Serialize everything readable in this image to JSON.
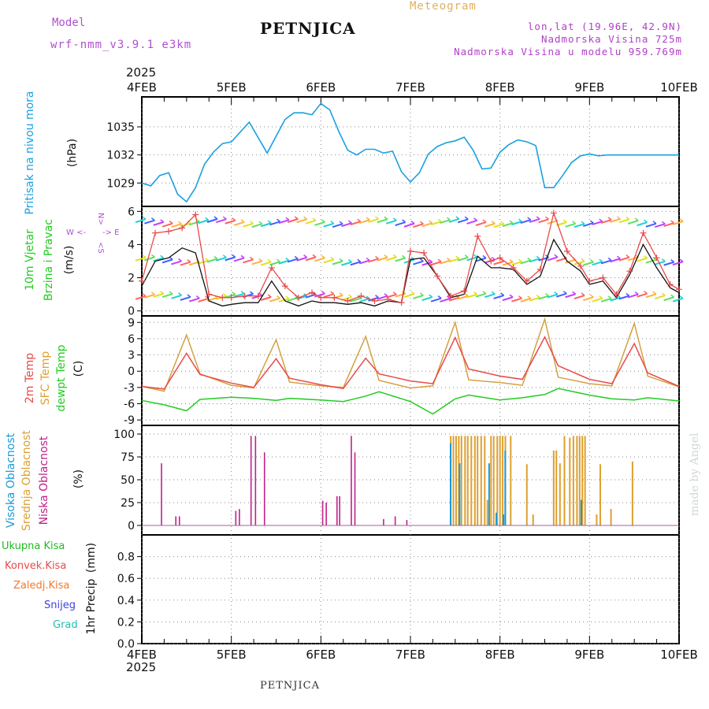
{
  "header": {
    "title": "PETNJICA",
    "subtitle": "Meteogram",
    "model_label": "Model",
    "model_name": "wrf-nmm_v3.9.1  e3km",
    "coords": "lon,lat (19.96E, 42.9N)",
    "elevation": "Nadmorska Visina 725m",
    "model_elevation": "Nadmorska Visina u modelu 959.769m",
    "footer": "PETNJICA",
    "year": "2025",
    "credit": "made by Angel"
  },
  "colors": {
    "pressure": "#1aa0e0",
    "wind": "#111111",
    "wind_gust": "#e84a4a",
    "temp2m": "#e84a4a",
    "sfc_temp": "#d4a040",
    "dewpoint": "#22cc22",
    "cloud_high": "#1a9ad6",
    "cloud_mid": "#dda030",
    "cloud_low": "#c0208a"
  },
  "chart_data": [
    {
      "type": "line",
      "id": "pressure",
      "ylabel_main": "Pritisak na nivou mora",
      "ylabel_unit": "(hPa)",
      "x_ticks": [
        "4FEB",
        "5FEB",
        "6FEB",
        "7FEB",
        "8FEB",
        "9FEB",
        "10FEB"
      ],
      "ylim": [
        1026.5,
        1038.2
      ],
      "yticks": [
        1029,
        1032,
        1035
      ],
      "x": [
        0,
        0.1,
        0.2,
        0.3,
        0.4,
        0.5,
        0.6,
        0.7,
        0.8,
        0.9,
        1.0,
        1.2,
        1.4,
        1.6,
        1.7,
        1.8,
        1.9,
        2.0,
        2.1,
        2.2,
        2.3,
        2.4,
        2.5,
        2.6,
        2.7,
        2.8,
        2.9,
        3.0,
        3.1,
        3.2,
        3.3,
        3.4,
        3.5,
        3.6,
        3.7,
        3.8,
        3.9,
        4.0,
        4.1,
        4.2,
        4.3,
        4.4,
        4.5,
        4.6,
        4.7,
        4.8,
        4.9,
        5.0,
        5.1,
        5.2,
        5.3,
        5.4,
        5.5,
        5.6,
        5.7,
        5.8,
        5.9,
        6.0
      ],
      "series": [
        {
          "name": "MSLP",
          "values": [
            1029,
            1028.7,
            1029.8,
            1030.1,
            1027.8,
            1027,
            1028.5,
            1031,
            1032.3,
            1033.2,
            1033.4,
            1035.5,
            1032.2,
            1035.8,
            1036.5,
            1036.5,
            1036.3,
            1037.5,
            1036.8,
            1034.5,
            1032.5,
            1032,
            1032.6,
            1032.6,
            1032.2,
            1032.4,
            1030.2,
            1029.1,
            1030.1,
            1032.1,
            1032.9,
            1033.3,
            1033.5,
            1033.9,
            1032.5,
            1030.5,
            1030.6,
            1032.3,
            1033.1,
            1033.6,
            1033.4,
            1033,
            1028.5,
            1028.5,
            1029.8,
            1031.2,
            1031.9,
            1032.1,
            1031.9,
            1032,
            1032.0,
            1032,
            1032,
            1032,
            1032,
            1032,
            1032,
            1032
          ]
        }
      ]
    },
    {
      "type": "line",
      "id": "wind",
      "ylabel_main": "10m Vjetar",
      "ylabel_sub": "Brzina i Pravac",
      "ylabel_unit": "(m/s)",
      "compass": {
        "n": "N",
        "s": "S",
        "w": "W",
        "e": "E"
      },
      "ylim": [
        -0.3,
        6.3
      ],
      "yticks": [
        0,
        2,
        4,
        6
      ],
      "x": [
        0,
        0.15,
        0.3,
        0.45,
        0.6,
        0.75,
        0.9,
        1.0,
        1.15,
        1.3,
        1.45,
        1.6,
        1.75,
        1.9,
        2.0,
        2.15,
        2.3,
        2.45,
        2.6,
        2.75,
        2.9,
        3.0,
        3.15,
        3.3,
        3.45,
        3.6,
        3.75,
        3.9,
        4.0,
        4.15,
        4.3,
        4.45,
        4.6,
        4.75,
        4.9,
        5.0,
        5.15,
        5.3,
        5.45,
        5.6,
        5.75,
        5.9,
        6.0
      ],
      "series": [
        {
          "name": "speed",
          "values": [
            1.5,
            3.0,
            3.2,
            3.8,
            3.5,
            0.6,
            0.3,
            0.4,
            0.5,
            0.5,
            1.8,
            0.6,
            0.3,
            0.6,
            0.5,
            0.5,
            0.4,
            0.5,
            0.3,
            0.6,
            0.5,
            3.1,
            3.2,
            2.1,
            0.8,
            1.0,
            3.3,
            2.6,
            2.6,
            2.5,
            1.6,
            2.1,
            4.3,
            3.0,
            2.4,
            1.6,
            1.8,
            0.8,
            2.2,
            4.0,
            2.6,
            1.4,
            1.1
          ]
        },
        {
          "name": "gust",
          "values": [
            1.8,
            4.7,
            4.8,
            5.0,
            5.8,
            1.0,
            0.8,
            0.8,
            0.9,
            0.9,
            2.6,
            1.5,
            0.8,
            1.1,
            0.8,
            0.8,
            0.6,
            0.9,
            0.6,
            0.7,
            0.5,
            3.6,
            3.5,
            2.1,
            0.9,
            1.2,
            4.5,
            3.0,
            3.2,
            2.6,
            1.8,
            2.5,
            5.9,
            3.6,
            2.7,
            1.8,
            2.0,
            1.0,
            2.4,
            4.7,
            3.2,
            1.6,
            1.3
          ]
        }
      ]
    },
    {
      "type": "line",
      "id": "temperature",
      "ylabel_main": "2m Temp",
      "ylabel_sub": "SFC Temp",
      "ylabel_sub2": "dewpt Temp",
      "ylabel_unit": "(C)",
      "ylim": [
        -10,
        10.2
      ],
      "yticks": [
        -9,
        -6,
        -3,
        0,
        3,
        6,
        9
      ],
      "x": [
        0,
        0.25,
        0.5,
        0.65,
        1.0,
        1.25,
        1.5,
        1.65,
        2.0,
        2.25,
        2.5,
        2.65,
        3.0,
        3.25,
        3.5,
        3.65,
        4.0,
        4.25,
        4.5,
        4.65,
        5.0,
        5.25,
        5.5,
        5.65,
        6.0
      ],
      "series": [
        {
          "name": "2m Temp",
          "values": [
            -2.8,
            -3.3,
            3.3,
            -0.6,
            -2.2,
            -3.0,
            2.3,
            -1.3,
            -2.5,
            -3.2,
            2.4,
            -0.5,
            -1.8,
            -2.3,
            6.2,
            0.4,
            -0.9,
            -1.5,
            6.3,
            1.0,
            -1.5,
            -2.3,
            5.1,
            -0.3,
            -2.8
          ]
        },
        {
          "name": "SFC Temp",
          "values": [
            -2.8,
            -3.7,
            6.7,
            -0.5,
            -2.6,
            -3.1,
            5.8,
            -2.0,
            -2.7,
            -3.0,
            6.4,
            -1.7,
            -3.1,
            -2.7,
            9.0,
            -1.6,
            -2.1,
            -2.6,
            9.6,
            -1.1,
            -2.3,
            -2.7,
            8.8,
            -0.9,
            -2.9
          ]
        },
        {
          "name": "dewpt Temp",
          "values": [
            -5.4,
            -6.2,
            -7.3,
            -5.2,
            -4.8,
            -5.0,
            -5.4,
            -5.0,
            -5.3,
            -5.6,
            -4.6,
            -3.8,
            -5.6,
            -7.9,
            -5.1,
            -4.4,
            -5.3,
            -4.9,
            -4.3,
            -3.2,
            -4.4,
            -5.1,
            -5.3,
            -4.9,
            -5.5
          ]
        }
      ]
    },
    {
      "type": "bar",
      "id": "clouds",
      "ylabel_main": "Visoka Oblacnost",
      "ylabel_sub": "Srednja Oblacnost",
      "ylabel_sub2": "Niska Oblacnost",
      "ylabel_unit": "(%)",
      "ylim": [
        0,
        100
      ],
      "yticks": [
        0,
        25,
        50,
        75,
        100
      ],
      "low_x": [
        0.22,
        0.38,
        0.42,
        1.05,
        1.09,
        1.22,
        1.27,
        1.37,
        2.02,
        2.06,
        2.18,
        2.21,
        2.34,
        2.38,
        2.7,
        2.83,
        2.96
      ],
      "low_values": [
        68,
        10,
        10,
        16,
        18,
        98,
        98,
        80,
        27,
        25,
        32,
        32,
        98,
        80,
        7,
        10,
        6
      ],
      "mid_x": [
        3.45,
        3.48,
        3.51,
        3.54,
        3.57,
        3.61,
        3.64,
        3.68,
        3.72,
        3.75,
        3.79,
        3.83,
        3.86,
        3.9,
        3.93,
        3.97,
        4.0,
        4.03,
        4.06,
        4.12,
        4.3,
        4.37,
        4.6,
        4.63,
        4.67,
        4.72,
        4.78,
        4.82,
        4.86,
        4.89,
        4.92,
        4.95,
        5.08,
        5.12,
        5.24,
        5.48
      ],
      "mid_values": [
        98,
        98,
        98,
        98,
        98,
        98,
        98,
        98,
        98,
        98,
        98,
        98,
        28,
        98,
        98,
        98,
        98,
        98,
        98,
        98,
        67,
        12,
        82,
        82,
        68,
        98,
        96,
        98,
        98,
        98,
        98,
        98,
        12,
        67,
        18,
        70
      ],
      "high_x": [
        3.44,
        3.54,
        3.87,
        3.95,
        4.03,
        4.05,
        4.9
      ],
      "high_values": [
        90,
        68,
        68,
        14,
        12,
        82,
        28
      ]
    },
    {
      "type": "bar",
      "id": "precip",
      "ylabel_main": "1hr Precip",
      "ylabel_unit": "(mm)",
      "ylim": [
        0,
        1.0
      ],
      "yticks": [
        0,
        0.2,
        0.4,
        0.6,
        0.8
      ],
      "legend": [
        "Ukupna  Kisa",
        "Konvek.Kisa",
        "Zaledj.Kisa",
        "Snijeg",
        "Grad"
      ],
      "values": []
    }
  ]
}
